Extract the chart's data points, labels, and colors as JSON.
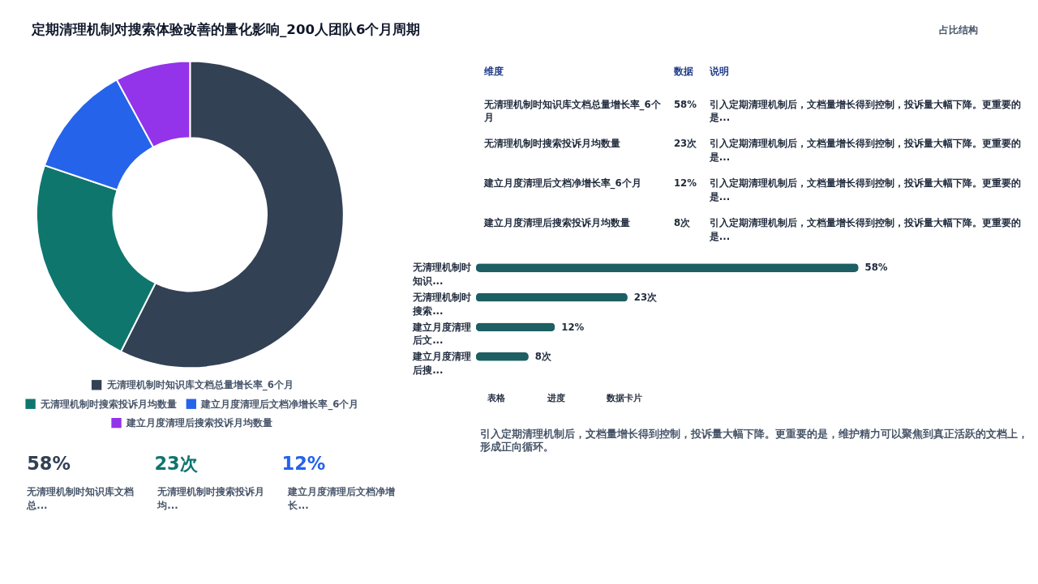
{
  "chart_data": [
    {
      "type": "donut",
      "title": "定期清理机制对搜索体验改善的量化影响_200人团队6个月周期",
      "categories": [
        "无清理机制时知识库文档总量增长率_6个月",
        "无清理机制时搜索投诉月均数量",
        "建立月度清理后文档净增长率_6个月",
        "建立月度清理后搜索投诉月均数量"
      ],
      "values": [
        58,
        23,
        12,
        8
      ],
      "colors": [
        "#334155",
        "#0f766e",
        "#2563eb",
        "#9333ea"
      ],
      "legend": "bottom"
    },
    {
      "type": "bar",
      "orientation": "horizontal",
      "categories": [
        "无清理机制时知识...",
        "无清理机制时搜索...",
        "建立月度清理后文...",
        "建立月度清理后搜..."
      ],
      "values": [
        58,
        23,
        12,
        8
      ],
      "value_labels": [
        "58%",
        "23次",
        "12%",
        "8次"
      ],
      "color": "#1e5f63"
    },
    {
      "type": "other",
      "annotations": [
        "占比结构",
        "维度",
        "数据",
        "说明",
        "无清理机制时知识库文档总量增长率_6个月",
        "58%",
        "引入定期清理机制后，文档量增长得到控制，投诉量大幅下降。更重要的是...",
        "无清理机制时搜索投诉月均数量",
        "23次",
        "引入定期清理机制后，文档量增长得到控制，投诉量大幅下降。更重要的是...",
        "建立月度清理后文档净增长率_6个月",
        "12%",
        "引入定期清理机制后，文档量增长得到控制，投诉量大幅下降。更重要的是...",
        "建立月度清理后搜索投诉月均数量",
        "8次",
        "引入定期清理机制后，文档量增长得到控制，投诉量大幅下降。更重要的是...",
        "58%",
        "无清理机制时知识库文档总...",
        "23次",
        "无清理机制时搜索投诉月均...",
        "12%",
        "建立月度清理后文档净增长...",
        "表格",
        "进度",
        "数据卡片",
        "引入定期清理机制后，文档量增长得到控制，投诉量大幅下降。更重要的是，维护精力可以聚焦到真正活跃的文档上，形成正向循环。"
      ]
    }
  ]
}
